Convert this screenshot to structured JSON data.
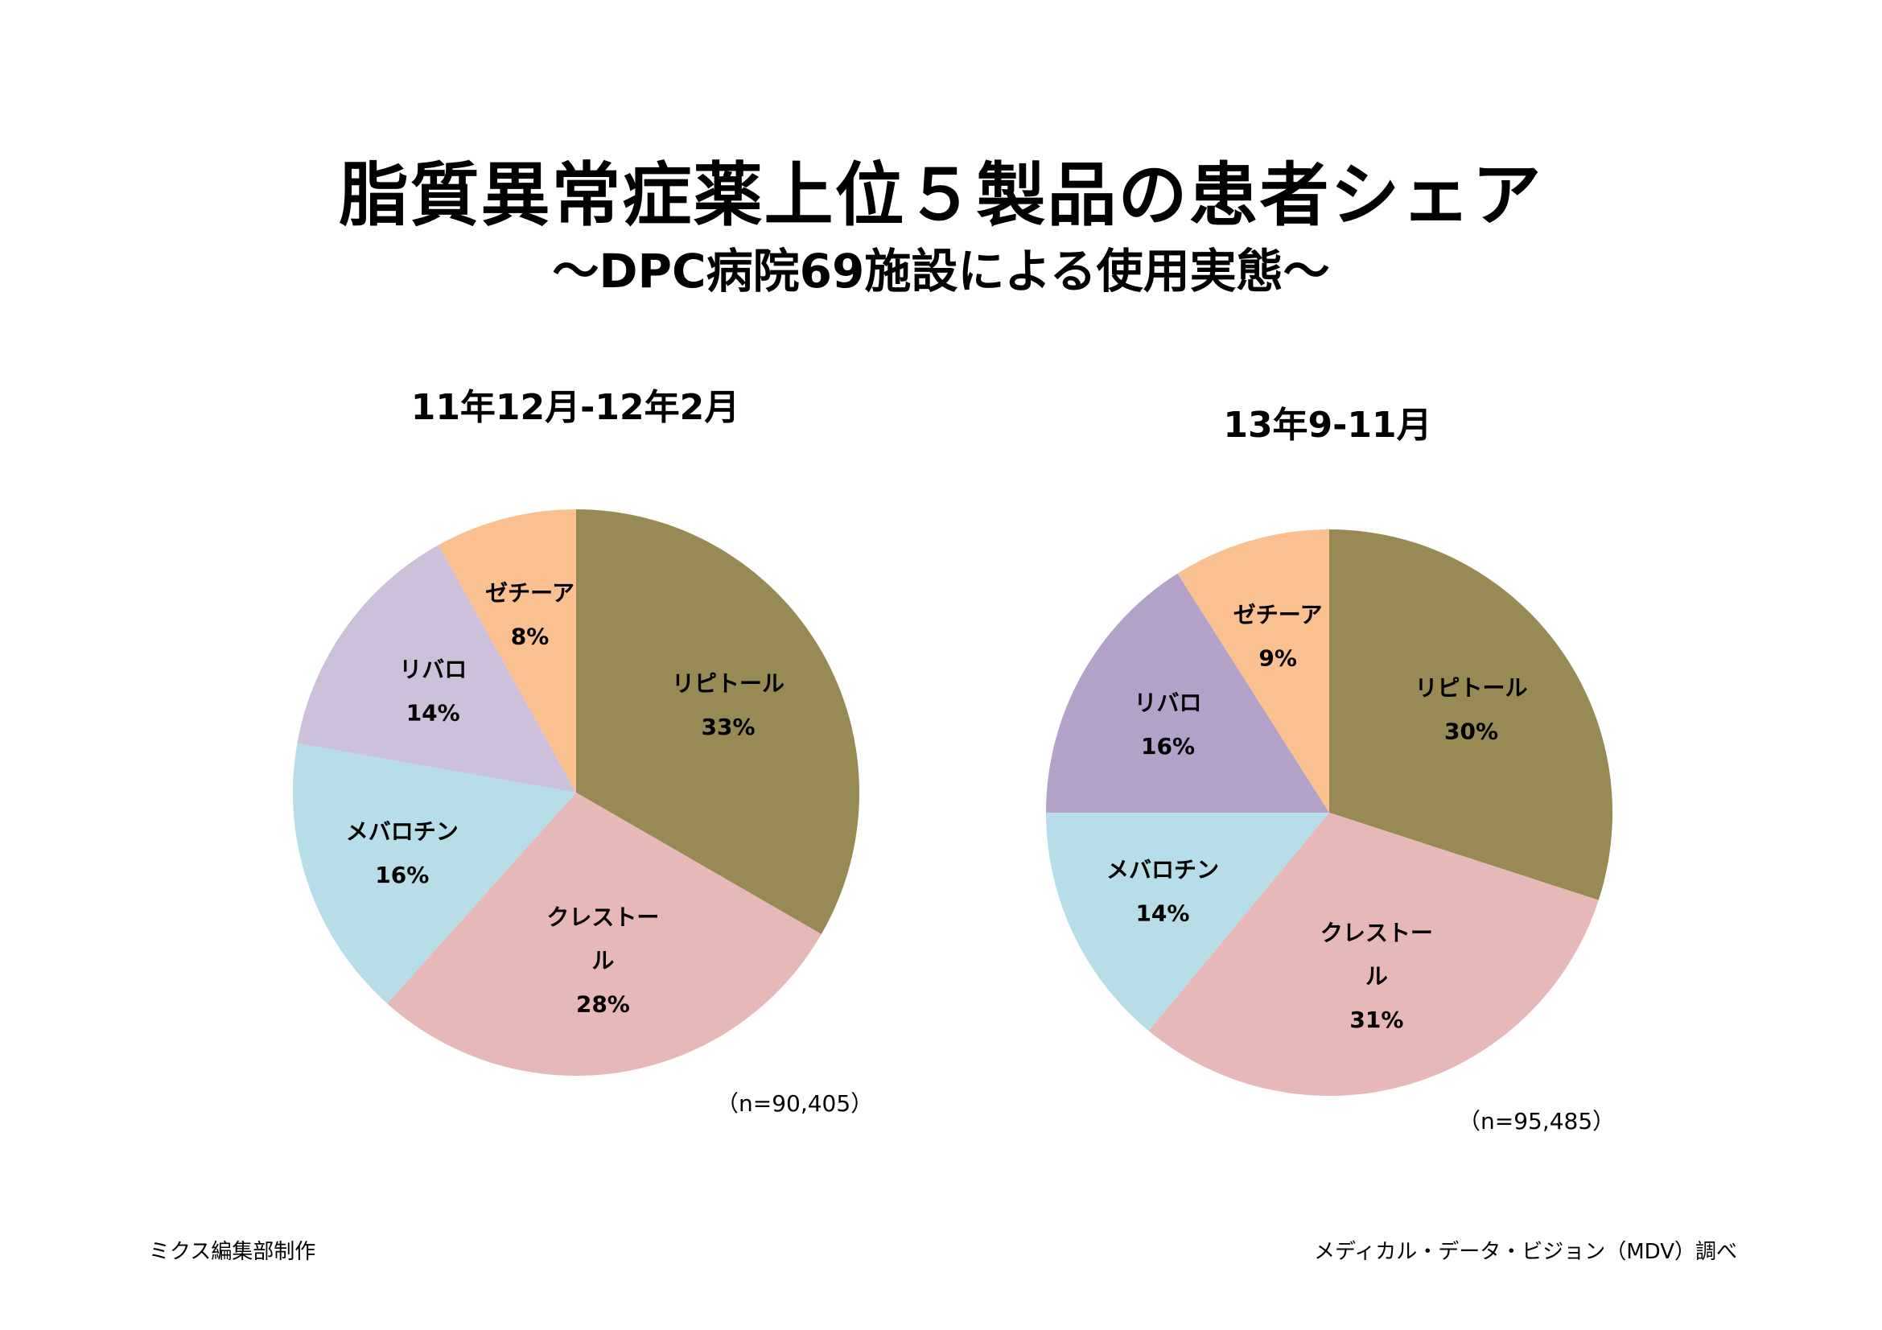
{
  "header": {
    "title": "脂質異常症薬上位５製品の患者シェア",
    "subtitle": "～DPC病院69施設による使用実態～"
  },
  "chart_data": [
    {
      "type": "pie",
      "title": "11年12月-12年2月",
      "n_label": "（n=90,405）",
      "slices": [
        {
          "label": "リピトール",
          "value": 33,
          "value_label": "33%",
          "color": "#978A55"
        },
        {
          "label": "クレストール",
          "value": 28,
          "value_label": "28%",
          "color": "#E6B8B7"
        },
        {
          "label": "メバロチン",
          "value": 16,
          "value_label": "16%",
          "color": "#B7DDE8"
        },
        {
          "label": "リバロ",
          "value": 14,
          "value_label": "14%",
          "color": "#CCC0DA"
        },
        {
          "label": "ゼチーア",
          "value": 8,
          "value_label": "8%",
          "color": "#FAC090"
        }
      ]
    },
    {
      "type": "pie",
      "title": "13年9-11月",
      "n_label": "（n=95,485）",
      "slices": [
        {
          "label": "リピトール",
          "value": 30,
          "value_label": "30%",
          "color": "#978A55"
        },
        {
          "label": "クレストール",
          "value": 31,
          "value_label": "31%",
          "color": "#E6B8B7"
        },
        {
          "label": "メバロチン",
          "value": 14,
          "value_label": "14%",
          "color": "#B7DDE8"
        },
        {
          "label": "リバロ",
          "value": 16,
          "value_label": "16%",
          "color": "#B3A2C7"
        },
        {
          "label": "ゼチーア",
          "value": 9,
          "value_label": "9%",
          "color": "#FAC090"
        }
      ]
    }
  ],
  "footer": {
    "left": "ミクス編集部制作",
    "right": "メディカル・データ・ビジョン（MDV）調べ"
  }
}
